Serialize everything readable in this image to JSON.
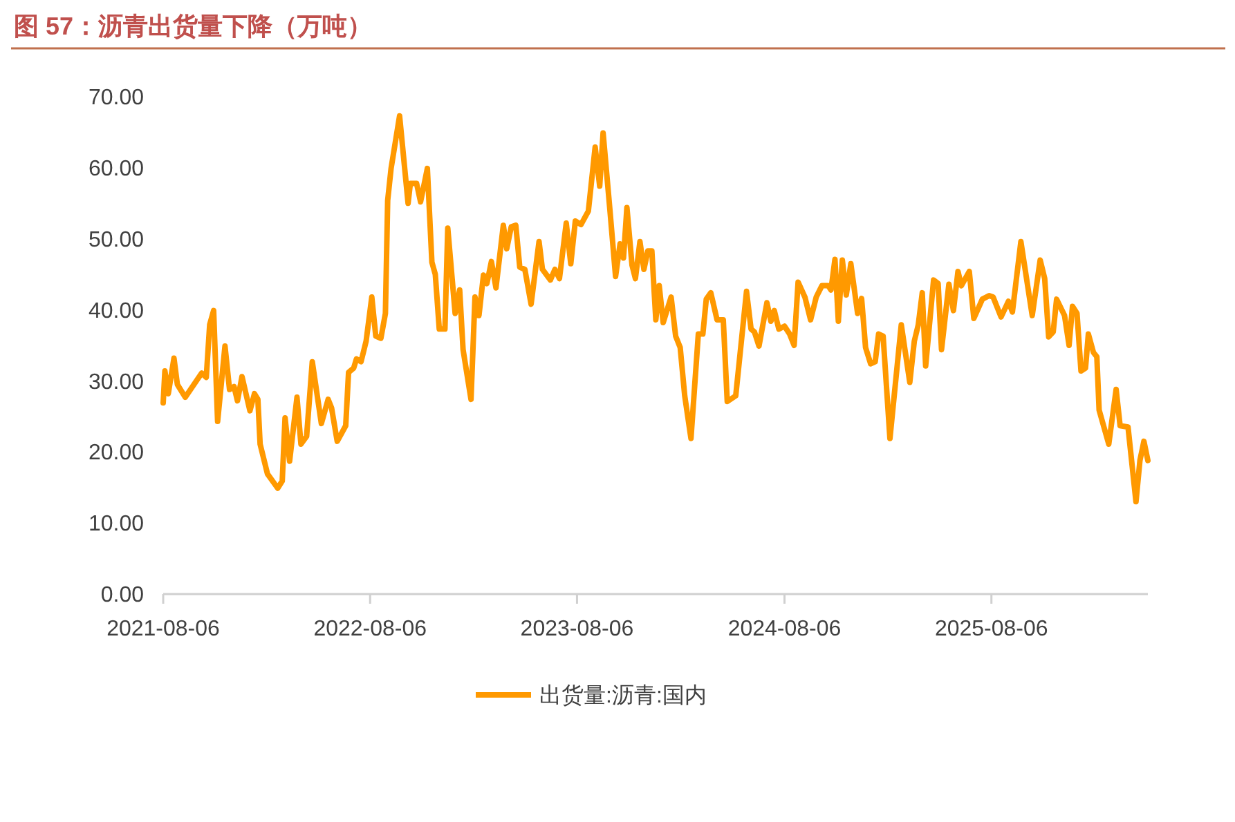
{
  "chart_data": {
    "type": "line",
    "title": "图 57：沥青出货量下降（万吨）",
    "x": [
      "2021-08-06",
      "2021-08-09",
      "2021-08-15",
      "2021-08-25",
      "2021-08-31",
      "2021-09-14",
      "2021-10-13",
      "2021-10-21",
      "2021-10-27",
      "2021-11-03",
      "2021-11-10",
      "2021-11-23",
      "2021-12-01",
      "2021-12-09",
      "2021-12-15",
      "2021-12-23",
      "2022-01-06",
      "2022-01-14",
      "2022-01-20",
      "2022-01-24",
      "2022-02-06",
      "2022-02-24",
      "2022-03-04",
      "2022-03-09",
      "2022-03-17",
      "2022-03-30",
      "2022-04-06",
      "2022-04-16",
      "2022-04-26",
      "2022-05-12",
      "2022-05-24",
      "2022-05-30",
      "2022-06-09",
      "2022-06-24",
      "2022-06-29",
      "2022-07-08",
      "2022-07-13",
      "2022-07-21",
      "2022-07-30",
      "2022-08-09",
      "2022-08-16",
      "2022-08-25",
      "2022-09-02",
      "2022-09-06",
      "2022-09-12",
      "2022-09-27",
      "2022-10-12",
      "2022-10-16",
      "2022-10-27",
      "2022-11-03",
      "2022-11-15",
      "2022-11-23",
      "2022-11-29",
      "2022-12-06",
      "2022-12-16",
      "2022-12-21",
      "2023-01-03",
      "2023-01-11",
      "2023-01-17",
      "2023-01-31",
      "2023-02-07",
      "2023-02-14",
      "2023-02-22",
      "2023-02-28",
      "2023-03-08",
      "2023-03-16",
      "2023-03-29",
      "2023-04-04",
      "2023-04-12",
      "2023-04-20",
      "2023-04-27",
      "2023-05-06",
      "2023-05-17",
      "2023-05-31",
      "2023-06-06",
      "2023-06-20",
      "2023-06-28",
      "2023-07-06",
      "2023-07-18",
      "2023-07-26",
      "2023-08-03",
      "2023-08-13",
      "2023-08-26",
      "2023-09-07",
      "2023-09-15",
      "2023-09-21",
      "2023-10-03",
      "2023-10-13",
      "2023-10-21",
      "2023-10-27",
      "2023-11-02",
      "2023-11-11",
      "2023-11-17",
      "2023-11-25",
      "2023-12-02",
      "2023-12-09",
      "2023-12-16",
      "2023-12-23",
      "2023-12-29",
      "2024-01-05",
      "2024-01-19",
      "2024-01-27",
      "2024-02-04",
      "2024-02-12",
      "2024-02-23",
      "2024-03-07",
      "2024-03-15",
      "2024-03-21",
      "2024-03-29",
      "2024-04-09",
      "2024-04-20",
      "2024-04-27",
      "2024-05-12",
      "2024-05-31",
      "2024-06-08",
      "2024-06-14",
      "2024-06-22",
      "2024-07-06",
      "2024-07-13",
      "2024-07-19",
      "2024-07-27",
      "2024-08-06",
      "2024-08-15",
      "2024-08-23",
      "2024-08-30",
      "2024-09-11",
      "2024-09-21",
      "2024-10-01",
      "2024-10-11",
      "2024-10-22",
      "2024-10-27",
      "2024-11-03",
      "2024-11-09",
      "2024-11-16",
      "2024-11-23",
      "2024-12-01",
      "2024-12-13",
      "2024-12-20",
      "2024-12-27",
      "2025-01-05",
      "2025-01-13",
      "2025-01-19",
      "2025-01-27",
      "2025-02-08",
      "2025-02-28",
      "2025-03-15",
      "2025-03-23",
      "2025-03-30",
      "2025-04-06",
      "2025-04-12",
      "2025-04-26",
      "2025-05-04",
      "2025-05-10",
      "2025-05-23",
      "2025-05-31",
      "2025-06-08",
      "2025-06-14",
      "2025-06-28",
      "2025-07-06",
      "2025-07-21",
      "2025-08-02",
      "2025-08-09",
      "2025-08-23",
      "2025-09-05",
      "2025-09-12",
      "2025-09-27",
      "2025-10-17",
      "2025-10-31",
      "2025-11-08",
      "2025-11-15",
      "2025-11-23",
      "2025-11-29",
      "2025-12-13",
      "2025-12-21",
      "2025-12-27",
      "2026-01-04",
      "2026-01-11",
      "2026-01-19",
      "2026-01-24",
      "2026-02-02",
      "2026-02-08",
      "2026-02-12",
      "2026-03-01",
      "2026-03-14",
      "2026-03-21",
      "2026-04-04",
      "2026-04-18",
      "2026-04-25",
      "2026-05-02",
      "2026-05-09"
    ],
    "series": [
      {
        "name": "出货量:沥青:国内",
        "color": "#ff9900",
        "values": [
          26.9,
          31.4,
          28.2,
          33.2,
          29.5,
          27.7,
          31.1,
          30.5,
          37.9,
          39.9,
          24.3,
          34.9,
          28.8,
          29.2,
          27.2,
          30.6,
          25.8,
          28.2,
          27.4,
          21.1,
          16.9,
          14.9,
          15.9,
          24.8,
          18.7,
          27.7,
          21.1,
          22.2,
          32.7,
          24.0,
          27.4,
          26.2,
          21.5,
          23.7,
          31.2,
          31.8,
          33.1,
          32.7,
          35.6,
          41.8,
          36.3,
          36.0,
          39.5,
          55.4,
          59.9,
          67.3,
          55.0,
          57.8,
          57.8,
          55.2,
          59.9,
          46.7,
          45.0,
          37.3,
          37.3,
          51.5,
          39.5,
          42.8,
          34.4,
          27.4,
          41.8,
          39.2,
          44.9,
          43.7,
          46.8,
          43.1,
          51.9,
          48.6,
          51.7,
          51.9,
          46.0,
          45.7,
          40.8,
          49.6,
          45.7,
          44.2,
          45.7,
          44.4,
          52.2,
          46.5,
          52.5,
          52.0,
          53.9,
          62.9,
          57.4,
          64.9,
          54.1,
          44.7,
          49.3,
          47.3,
          54.4,
          46.3,
          44.4,
          49.6,
          45.7,
          48.3,
          48.3,
          38.6,
          43.4,
          38.2,
          41.8,
          36.3,
          34.7,
          27.9,
          21.9,
          36.6,
          36.6,
          41.5,
          42.4,
          38.6,
          38.6,
          27.1,
          27.9,
          42.6,
          37.3,
          36.9,
          34.9,
          41.0,
          38.4,
          39.9,
          37.3,
          37.7,
          36.6,
          35.0,
          43.9,
          41.8,
          38.6,
          41.8,
          43.4,
          43.4,
          42.8,
          47.1,
          38.4,
          47.0,
          42.1,
          46.5,
          39.5,
          41.6,
          34.7,
          32.4,
          32.7,
          36.6,
          36.3,
          21.9,
          37.9,
          29.8,
          35.6,
          37.9,
          42.4,
          32.1,
          44.2,
          43.7,
          34.4,
          43.6,
          39.9,
          45.4,
          43.4,
          45.4,
          38.8,
          41.5,
          42.0,
          41.8,
          39.0,
          41.2,
          39.7,
          49.6,
          39.2,
          47.0,
          44.4,
          36.2,
          36.9,
          41.5,
          39.2,
          35.0,
          40.5,
          39.5,
          31.4,
          31.8,
          36.6,
          34.0,
          33.4,
          25.9,
          21.1,
          28.8,
          23.7,
          23.5,
          13.0,
          18.8,
          21.5,
          18.8
        ]
      }
    ],
    "xlim": [
      "2021-08-06",
      "2026-05-09"
    ],
    "xticks": [
      "2021-08-06",
      "2022-08-06",
      "2023-08-06",
      "2024-08-06",
      "2025-08-06"
    ],
    "ylim": [
      0,
      70
    ],
    "yticks": [
      {
        "value": 0,
        "label": "0.00"
      },
      {
        "value": 10,
        "label": "10.00"
      },
      {
        "value": 20,
        "label": "20.00"
      },
      {
        "value": 30,
        "label": "30.00"
      },
      {
        "value": 40,
        "label": "40.00"
      },
      {
        "value": 50,
        "label": "50.00"
      },
      {
        "value": 60,
        "label": "60.00"
      },
      {
        "value": 70,
        "label": "70.00"
      }
    ],
    "legend": "bottom",
    "grid": false,
    "marker": "none",
    "line_style": "solid"
  }
}
